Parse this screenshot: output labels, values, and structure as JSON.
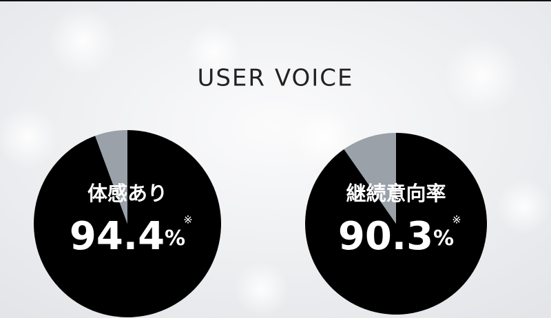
{
  "header": {
    "title": "USER VOICE"
  },
  "chart_data": [
    {
      "type": "pie",
      "title": "体感あり",
      "values": [
        94.4,
        5.6
      ],
      "colors": [
        "#000000",
        "#9aa1a8"
      ],
      "value_labels": [
        "94.4%",
        null
      ],
      "note": "※"
    },
    {
      "type": "pie",
      "title": "継続意向率",
      "values": [
        90.3,
        9.7
      ],
      "colors": [
        "#000000",
        "#9aa1a8"
      ],
      "value_labels": [
        "90.3%",
        null
      ],
      "note": "※"
    }
  ]
}
